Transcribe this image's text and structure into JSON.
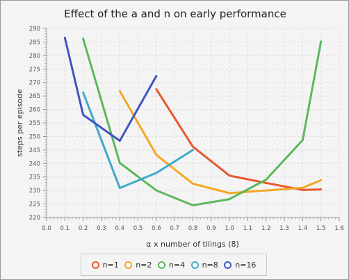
{
  "chart_data": {
    "type": "line",
    "title": "Effect of the a and n on early performance",
    "xlabel": "α x number of tilings (8)",
    "ylabel": "steps per episode",
    "xlim": [
      0.0,
      1.6
    ],
    "ylim": [
      220,
      290
    ],
    "x_ticks": [
      "0.0",
      "0.1",
      "0.2",
      "0.3",
      "0.4",
      "0.5",
      "0.6",
      "0.7",
      "0.8",
      "0.9",
      "1.0",
      "1.1",
      "1.2",
      "1.3",
      "1.4",
      "1.5",
      "1.6"
    ],
    "y_ticks": [
      "220",
      "225",
      "230",
      "235",
      "240",
      "245",
      "250",
      "255",
      "260",
      "265",
      "270",
      "275",
      "280",
      "285",
      "290"
    ],
    "grid": true,
    "legend_position": "bottom",
    "series": [
      {
        "name": "n=1",
        "color": "#e8572e",
        "points": [
          [
            0.6,
            267.5
          ],
          [
            0.8,
            246.2
          ],
          [
            1.0,
            235.5
          ],
          [
            1.2,
            232.8
          ],
          [
            1.4,
            230.2
          ],
          [
            1.5,
            230.4
          ]
        ]
      },
      {
        "name": "n=2",
        "color": "#f5a623",
        "points": [
          [
            0.4,
            266.8
          ],
          [
            0.6,
            243.2
          ],
          [
            0.8,
            232.5
          ],
          [
            1.0,
            229.0
          ],
          [
            1.2,
            230.0
          ],
          [
            1.4,
            231.0
          ],
          [
            1.5,
            233.8
          ]
        ]
      },
      {
        "name": "n=4",
        "color": "#5cb85c",
        "points": [
          [
            0.2,
            286.2
          ],
          [
            0.4,
            240.2
          ],
          [
            0.6,
            230.0
          ],
          [
            0.8,
            224.5
          ],
          [
            1.0,
            226.8
          ],
          [
            1.2,
            234.0
          ],
          [
            1.4,
            248.7
          ],
          [
            1.5,
            285.2
          ]
        ]
      },
      {
        "name": "n=8",
        "color": "#3fa9c9",
        "points": [
          [
            0.2,
            266.3
          ],
          [
            0.4,
            230.9
          ],
          [
            0.6,
            236.5
          ],
          [
            0.8,
            245.0
          ]
        ]
      },
      {
        "name": "n=16",
        "color": "#4055c0",
        "points": [
          [
            0.1,
            286.6
          ],
          [
            0.2,
            258.0
          ],
          [
            0.4,
            248.4
          ],
          [
            0.6,
            272.4
          ]
        ]
      }
    ]
  }
}
